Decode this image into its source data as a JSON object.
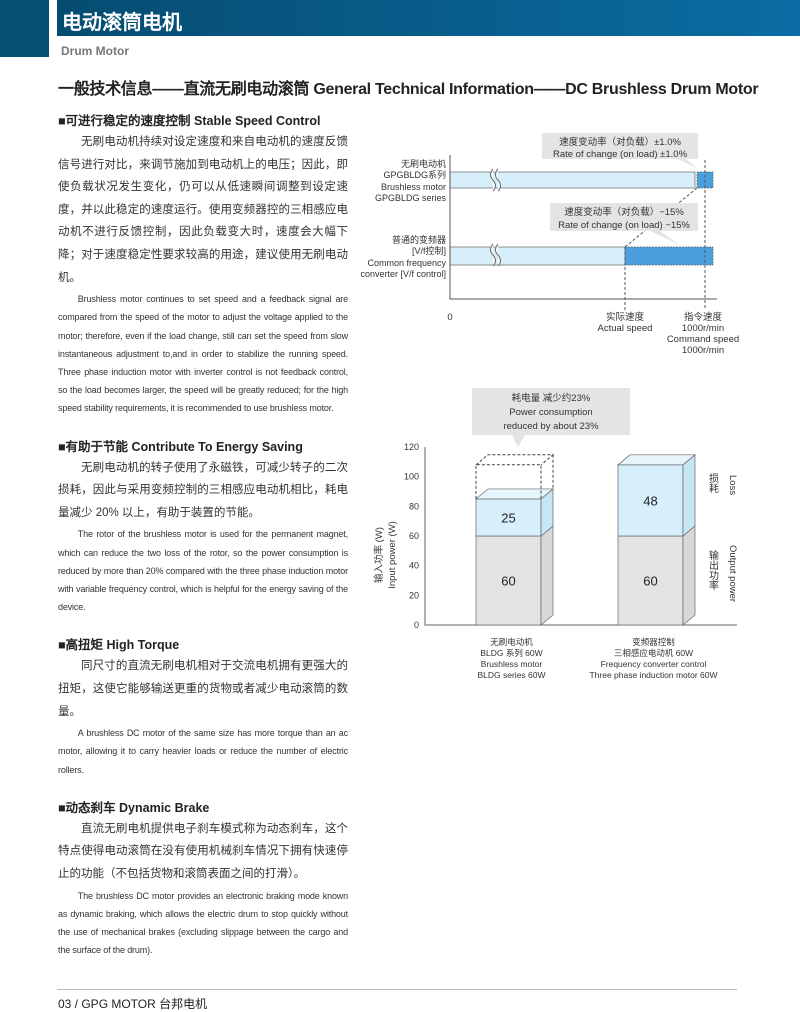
{
  "header": {
    "title": "电动滚筒电机",
    "subtitle": "Drum Motor"
  },
  "page_title": "一般技术信息——直流无刷电动滚筒 General Technical Information——DC Brushless Drum Motor",
  "sections": [
    {
      "title": "■可进行稳定的速度控制 Stable Speed Control",
      "cn": "无刷电动机持续对设定速度和来自电动机的速度反馈信号进行对比，来调节施加到电动机上的电压；因此，即使负载状况发生变化，仍可以从低速瞬间调整到设定速度，并以此稳定的速度运行。使用变频器控的三相感应电动机不进行反馈控制，因此负载变大时，速度会大幅下降；对于速度稳定性要求较高的用途，建议使用无刷电动机。",
      "en": "Brushless motor continues to set speed and a feedback signal are compared from the speed of the motor to adjust the voltage applied to the motor; therefore, even if the load change, still can set the speed from slow instantaneous adjustment to,and in order to stabilize the running speed. Three phase induction motor with inverter control is not feedback control, so the load becomes larger, the speed will be greatly reduced; for the high speed stability requirements, it is recommended to use brushless motor."
    },
    {
      "title": "■有助于节能 Contribute To Energy Saving",
      "cn": "无刷电动机的转子使用了永磁铁，可减少转子的二次损耗，因此与采用变频控制的三相感应电动机相比，耗电量减少 20% 以上，有助于装置的节能。",
      "en": "The rotor of the brushless motor is used for the permanent magnet, which can reduce the two loss of the rotor, so the power consumption is reduced by more than 20% compared with the three phase induction motor with variable frequency control, which is helpful for the energy saving of the device."
    },
    {
      "title": "■高扭矩 High Torque",
      "cn": "同尺寸的直流无刷电机相对于交流电机拥有更强大的扭矩，这使它能够输送更重的货物或者减少电动滚筒的数量。",
      "en": "A brushless DC motor of the same size has more torque than an ac motor, allowing it to carry heavier loads or reduce the number of electric rollers."
    },
    {
      "title": "■动态刹车 Dynamic Brake",
      "cn": "直流无刷电机提供电子刹车模式称为动态刹车，这个特点使得电动滚筒在没有使用机械刹车情况下拥有快速停止的功能（不包括货物和滚筒表面之间的打滑）。",
      "en": "The brushless DC motor provides an electronic braking mode known as dynamic braking, which allows the electric drum to stop quickly without the use of mechanical brakes (excluding slippage between the cargo and the surface of the drum)."
    }
  ],
  "speed_diagram": {
    "row1": [
      "无刷电动机",
      "GPGBLDG系列",
      "Brushless motor",
      "GPGBLDG series"
    ],
    "row2": [
      "普通的变频器",
      "[V/f控制]",
      "Common frequency",
      "converter [V/f control]"
    ],
    "callout1": [
      "速度变动率（对负载）±1.0%",
      "Rate of change (on load) ±1.0%"
    ],
    "callout2": [
      "速度变动率（对负载）−15%",
      "Rate of change (on load) −15%"
    ],
    "zero": "0",
    "actual": [
      "实际速度",
      "Actual speed"
    ],
    "command": [
      "指令速度",
      "1000r/min",
      "Command speed",
      "1000r/min"
    ],
    "colors": {
      "bar": "#d6effa",
      "band": "#4a9fdc",
      "callout": "#e4e4e4"
    }
  },
  "chart_data": {
    "type": "bar",
    "stacked": true,
    "categories": [
      [
        "无刷电动机",
        "BLDG 系列 60W",
        "Brushless motor",
        "BLDG series 60W"
      ],
      [
        "变频器控制",
        "三相感应电动机 60W",
        "Frequency converter control",
        "Three phase induction motor 60W"
      ]
    ],
    "series": [
      {
        "name": "输出功率 Output power",
        "values": [
          60,
          60
        ],
        "color": "#e3e3e3"
      },
      {
        "name": "损耗 Loss",
        "values": [
          25,
          48
        ],
        "color": "#d6effa"
      }
    ],
    "ylabel": [
      "输入功率 (W)",
      "Input power (W)"
    ],
    "yticks": [
      0,
      20,
      40,
      60,
      80,
      100,
      120
    ],
    "ylim": [
      0,
      120
    ],
    "legend_loss": [
      "损耗",
      "Loss"
    ],
    "legend_output": [
      "输出功率",
      "Output power"
    ],
    "callout": [
      "耗电量 减少约23%",
      "Power consumption",
      "reduced by about 23%"
    ],
    "dashed_reference": 108
  },
  "footer": "03 /  GPG MOTOR 台邦电机"
}
